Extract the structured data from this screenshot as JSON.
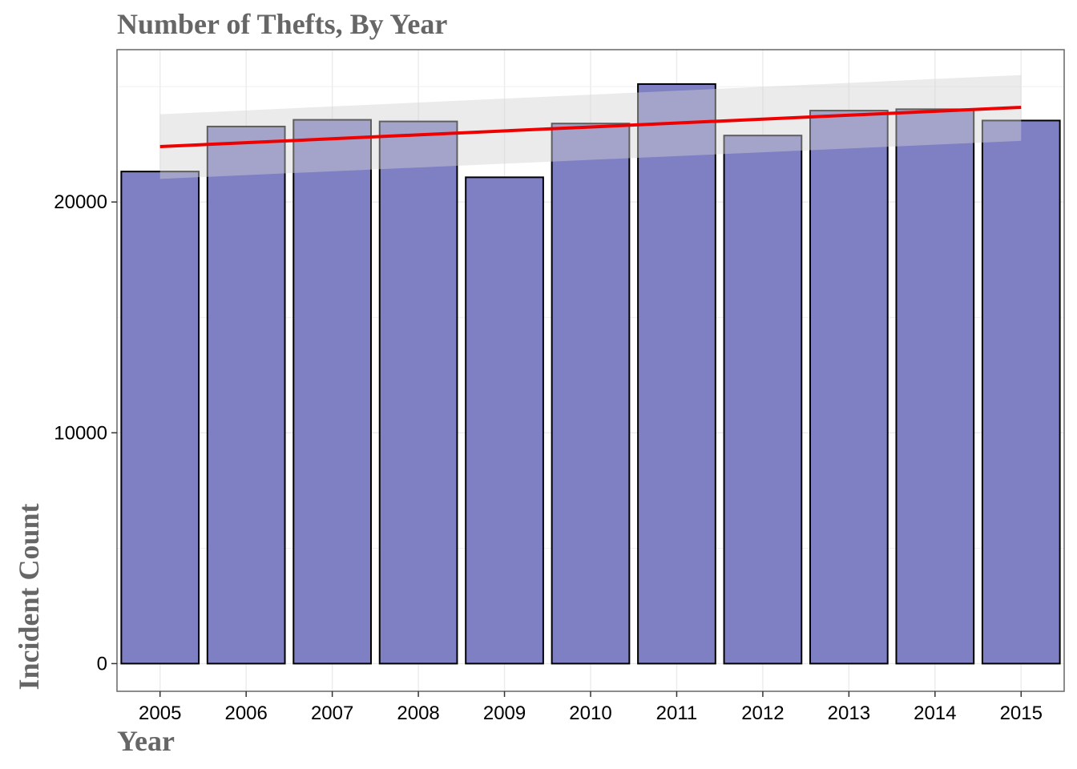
{
  "chart_data": {
    "type": "bar",
    "title": "Number of Thefts, By Year",
    "xlabel": "Year",
    "ylabel": "Incident Count",
    "categories": [
      "2005",
      "2006",
      "2007",
      "2008",
      "2009",
      "2010",
      "2011",
      "2012",
      "2013",
      "2014",
      "2015"
    ],
    "x": [
      2005,
      2006,
      2007,
      2008,
      2009,
      2010,
      2011,
      2012,
      2013,
      2014,
      2015
    ],
    "values": [
      21320,
      23270,
      23560,
      23490,
      21070,
      23400,
      25110,
      22880,
      23960,
      24020,
      23530
    ],
    "yticks": [
      0,
      10000,
      20000
    ],
    "ylim": [
      -1200,
      26600
    ],
    "xlim": [
      2004.5,
      2015.5
    ],
    "grid": true,
    "legend": "none",
    "trend": {
      "type": "linear",
      "start": [
        2005,
        22400
      ],
      "end": [
        2015,
        24100
      ],
      "ci_start": [
        21000,
        23800
      ],
      "ci_end": [
        22650,
        25500
      ]
    },
    "colors": {
      "bar_fill": "#7f7fc4",
      "bar_stroke": "#000000",
      "trend_line": "#ee0000",
      "ci_band": "#d3d3d3",
      "panel_border": "#666666",
      "grid": "#ebebeb",
      "title": "#666666"
    }
  }
}
